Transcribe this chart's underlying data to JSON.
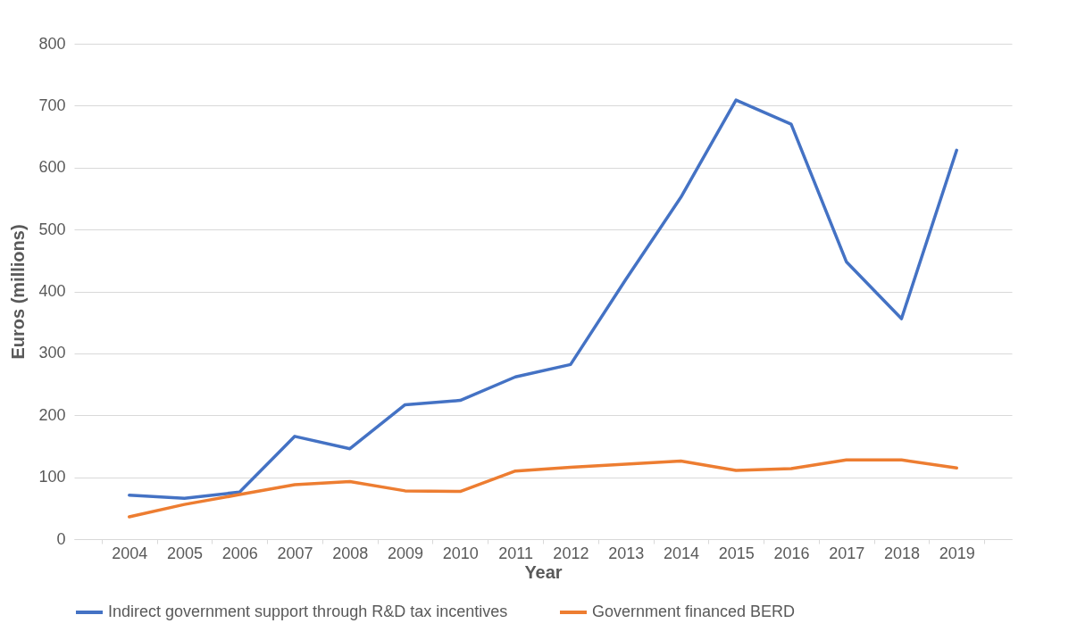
{
  "chart_data": {
    "type": "line",
    "xlabel": "Year",
    "ylabel": "Euros (millions)",
    "categories": [
      "2004",
      "2005",
      "2006",
      "2007",
      "2008",
      "2009",
      "2010",
      "2011",
      "2012",
      "2013",
      "2014",
      "2015",
      "2016",
      "2017",
      "2018",
      "2019"
    ],
    "series": [
      {
        "name": "Indirect government support through R&D tax incentives",
        "color": "#4472c4",
        "values": [
          71,
          66,
          76,
          166,
          146,
          217,
          224,
          262,
          282,
          419,
          552,
          709,
          670,
          448,
          356,
          628
        ]
      },
      {
        "name": "Government financed BERD",
        "color": "#ed7d31",
        "values": [
          36,
          56,
          72,
          88,
          93,
          78,
          77,
          110,
          116,
          121,
          126,
          111,
          114,
          128,
          128,
          115
        ]
      }
    ],
    "ylim": [
      0,
      800
    ],
    "yticks": [
      0,
      100,
      200,
      300,
      400,
      500,
      600,
      700,
      800
    ],
    "grid": "y",
    "legend": "bottom"
  }
}
